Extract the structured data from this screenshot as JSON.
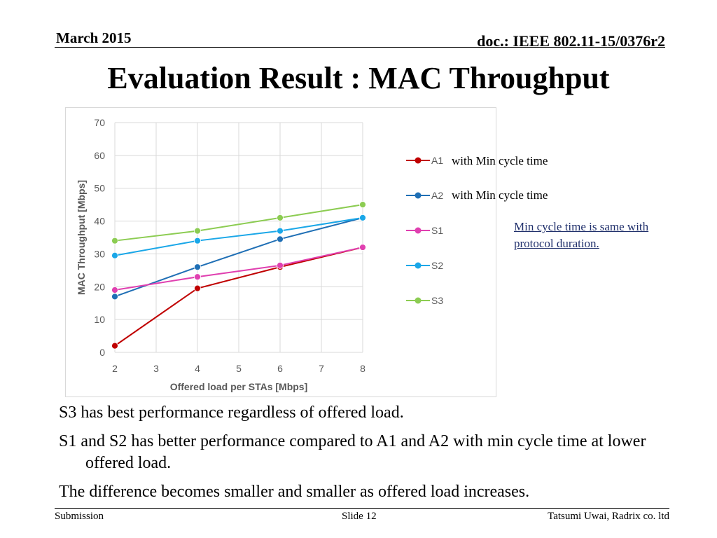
{
  "header": {
    "date": "March 2015",
    "doc": "doc.: IEEE 802.11-15/0376r2"
  },
  "title": "Evaluation Result : MAC Throughput",
  "chart_data": {
    "type": "line",
    "title": "",
    "xlabel": "Offered load per STAs [Mbps]",
    "ylabel": "MAC Throughput [Mbps]",
    "xlim": [
      2,
      8
    ],
    "ylim": [
      0,
      70
    ],
    "xticks": [
      2,
      3,
      4,
      5,
      6,
      7,
      8
    ],
    "yticks": [
      0,
      10,
      20,
      30,
      40,
      50,
      60,
      70
    ],
    "grid": true,
    "legend_position": "right",
    "x": [
      2,
      4,
      6,
      8
    ],
    "series": [
      {
        "name": "A1",
        "color": "#c00000",
        "values": [
          2,
          19.5,
          26,
          32
        ]
      },
      {
        "name": "A2",
        "color": "#1f6fb5",
        "values": [
          17,
          26,
          34.5,
          41
        ]
      },
      {
        "name": "S1",
        "color": "#e040b0",
        "values": [
          19,
          23,
          26.5,
          32
        ]
      },
      {
        "name": "S2",
        "color": "#1aa7e8",
        "values": [
          29.5,
          34,
          37,
          41
        ]
      },
      {
        "name": "S3",
        "color": "#8ccc52",
        "values": [
          34,
          37,
          41,
          45
        ]
      }
    ]
  },
  "annotations": {
    "a1_note": "with Min cycle time",
    "a2_note": "with Min cycle time",
    "cycle_note": "Min cycle time is same with protocol duration."
  },
  "bullets": [
    "S3 has best performance regardless of offered load.",
    "S1 and S2 has better performance compared to A1 and A2 with min cycle time at lower offered load.",
    "The difference becomes smaller and smaller as offered load increases."
  ],
  "footer": {
    "left": "Submission",
    "center": "Slide 12",
    "right": "Tatsumi Uwai, Radrix co. ltd"
  }
}
